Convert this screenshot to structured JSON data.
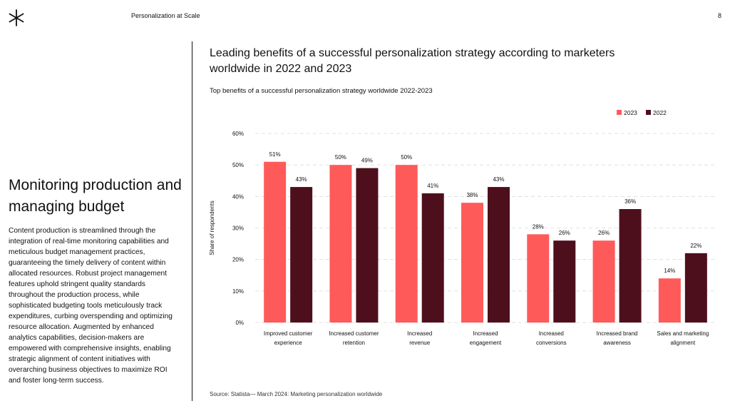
{
  "header": {
    "doc_title": "Personalization at Scale",
    "page_number": "8"
  },
  "sidebar": {
    "heading": "Monitoring production and managing budget",
    "body": "Content production is streamlined through the integration of real-time monitoring capabilities and meticulous budget management practices, guaranteeing the timely delivery of content within allocated resources. Robust project management features uphold stringent quality standards throughout the production process, while sophisticated budgeting tools meticulously track expenditures, curbing overspending and optimizing resource allocation. Augmented by enhanced analytics capabilities, decision-makers are empowered with comprehensive insights, enabling strategic alignment of content initiatives with overarching business objectives to maximize ROI and foster long-term success."
  },
  "chart_header": {
    "title": "Leading benefits of a successful personalization strategy according to marketers worldwide in 2022 and 2023",
    "subtitle": "Top benefits of a successful personalization strategy worldwide 2022-2023",
    "source": "Source: Statista— March 2024: Marketing personalization worldwide"
  },
  "colors": {
    "series_2023": "#ff5a5a",
    "series_2022": "#4e0f1d",
    "grid": "#d9d9d9"
  },
  "chart_data": {
    "type": "bar",
    "categories": [
      [
        "Improved customer",
        "experience"
      ],
      [
        "Increased customer",
        "retention"
      ],
      [
        "Increased",
        "revenue"
      ],
      [
        "Increased",
        "engagement"
      ],
      [
        "Increased",
        "conversions"
      ],
      [
        "Increased brand",
        "awareness"
      ],
      [
        "Sales and marketing",
        "alignment"
      ]
    ],
    "series": [
      {
        "name": "2023",
        "values": [
          51,
          50,
          50,
          38,
          28,
          26,
          14
        ]
      },
      {
        "name": "2022",
        "values": [
          43,
          49,
          41,
          43,
          26,
          36,
          22
        ]
      }
    ],
    "ylabel": "Share of respondents",
    "xlabel": "",
    "ylim": [
      0,
      60
    ],
    "yticks": [
      0,
      10,
      20,
      30,
      40,
      50,
      60
    ],
    "value_suffix": "%",
    "legend": "top-right",
    "grid": true
  }
}
